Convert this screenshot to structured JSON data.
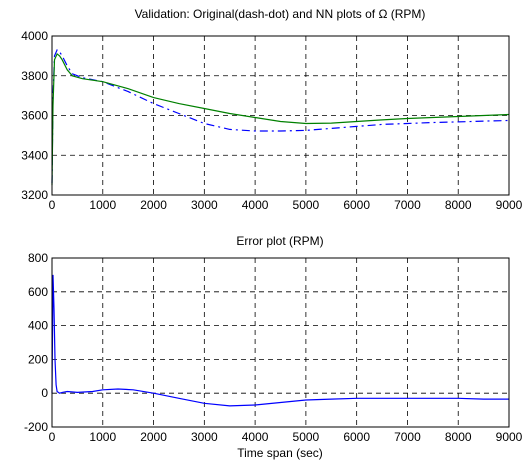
{
  "chart_data": [
    {
      "type": "line",
      "title": "Validation: Original(dash-dot) and NN plots of Ω (RPM)",
      "xlabel": "",
      "ylabel": "",
      "xlim": [
        0,
        9000
      ],
      "ylim": [
        3200,
        4000
      ],
      "xticks": [
        0,
        1000,
        2000,
        3000,
        4000,
        5000,
        6000,
        7000,
        8000,
        9000
      ],
      "yticks": [
        3200,
        3400,
        3600,
        3800,
        4000
      ],
      "grid": true,
      "series": [
        {
          "style": "dash-dot",
          "color": "#0000ff",
          "x": [
            0,
            20,
            50,
            100,
            150,
            200,
            300,
            400,
            600,
            1000,
            1500,
            2000,
            2500,
            3000,
            3500,
            4000,
            4500,
            5000,
            5500,
            6000,
            6500,
            7000,
            7500,
            8000,
            8500,
            9000
          ],
          "y": [
            3260,
            3700,
            3900,
            3930,
            3920,
            3900,
            3850,
            3810,
            3790,
            3770,
            3720,
            3660,
            3610,
            3560,
            3530,
            3522,
            3522,
            3525,
            3535,
            3545,
            3555,
            3560,
            3565,
            3568,
            3572,
            3575
          ]
        },
        {
          "style": "solid",
          "color": "#008000",
          "x": [
            0,
            20,
            50,
            100,
            150,
            200,
            300,
            400,
            600,
            1000,
            1500,
            2000,
            2500,
            3000,
            3500,
            4000,
            4500,
            5000,
            5500,
            6000,
            6500,
            7000,
            7500,
            8000,
            8500,
            9000
          ],
          "y": [
            3250,
            3650,
            3880,
            3910,
            3900,
            3880,
            3830,
            3800,
            3785,
            3770,
            3735,
            3690,
            3660,
            3635,
            3610,
            3590,
            3570,
            3560,
            3562,
            3570,
            3578,
            3585,
            3590,
            3595,
            3600,
            3605
          ]
        }
      ]
    },
    {
      "type": "line",
      "title": "Error plot (RPM)",
      "xlabel": "Time span (sec)",
      "ylabel": "",
      "xlim": [
        0,
        9000
      ],
      "ylim": [
        -200,
        800
      ],
      "xticks": [
        0,
        1000,
        2000,
        3000,
        4000,
        5000,
        6000,
        7000,
        8000,
        9000
      ],
      "yticks": [
        -200,
        0,
        200,
        400,
        600,
        800
      ],
      "grid": true,
      "series": [
        {
          "style": "solid",
          "color": "#0000ff",
          "x": [
            0,
            20,
            40,
            60,
            80,
            100,
            150,
            200,
            300,
            500,
            800,
            1000,
            1300,
            1600,
            2000,
            2500,
            3000,
            3500,
            4000,
            4500,
            5000,
            5500,
            6000,
            6500,
            7000,
            7500,
            8000,
            8500,
            9000
          ],
          "y": [
            0,
            700,
            500,
            200,
            50,
            10,
            0,
            5,
            10,
            5,
            10,
            20,
            25,
            20,
            0,
            -30,
            -60,
            -75,
            -70,
            -55,
            -40,
            -35,
            -30,
            -30,
            -30,
            -30,
            -30,
            -35,
            -35
          ]
        }
      ]
    }
  ]
}
